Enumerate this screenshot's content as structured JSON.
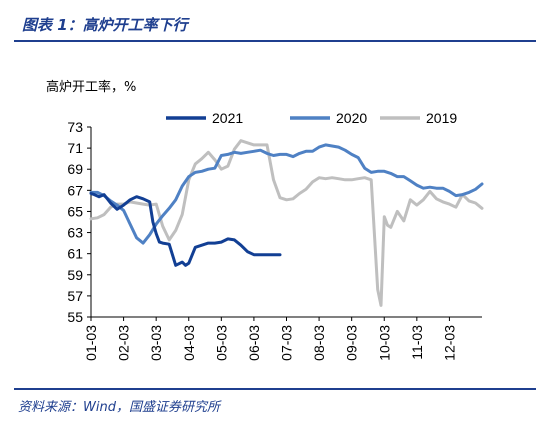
{
  "header": {
    "title": "图表 1：高炉开工率下行"
  },
  "footer": {
    "source": "资料来源：Wind，国盛证券研究所"
  },
  "colors": {
    "accent": "#1f3f8f"
  },
  "chart_data": {
    "type": "line",
    "ylabel": "高炉开工率，%",
    "ylim": [
      55,
      73
    ],
    "yticks": [
      55,
      57,
      59,
      61,
      63,
      65,
      67,
      69,
      71,
      73
    ],
    "xlim": [
      1.0,
      13.0
    ],
    "x_tick_labels": [
      "01-03",
      "02-03",
      "03-03",
      "04-03",
      "05-03",
      "06-03",
      "07-03",
      "08-03",
      "09-03",
      "10-03",
      "11-03",
      "12-03"
    ],
    "x_tick_values": [
      1,
      2,
      3,
      4,
      5,
      6,
      7,
      8,
      9,
      10,
      11,
      12
    ],
    "legend_position": "top-right",
    "series": [
      {
        "name": "2021",
        "color": "#123f94",
        "x": [
          1.0,
          1.1,
          1.25,
          1.4,
          1.6,
          1.8,
          2.0,
          2.2,
          2.4,
          2.6,
          2.8,
          2.9,
          3.0,
          3.1,
          3.2,
          3.4,
          3.6,
          3.8,
          3.9,
          4.0,
          4.2,
          4.4,
          4.6,
          4.8,
          5.0,
          5.2,
          5.4,
          5.6,
          5.8,
          6.0,
          6.2,
          6.4,
          6.6,
          6.8
        ],
        "values": [
          66.7,
          66.6,
          66.4,
          66.6,
          65.8,
          65.2,
          65.6,
          66.1,
          66.4,
          66.2,
          65.9,
          64.0,
          62.9,
          62.1,
          62.0,
          61.9,
          59.9,
          60.2,
          59.9,
          60.1,
          61.6,
          61.8,
          62.0,
          62.0,
          62.1,
          62.4,
          62.3,
          61.8,
          61.2,
          60.9,
          60.9,
          60.9,
          60.9,
          60.9
        ]
      },
      {
        "name": "2020",
        "color": "#4f81c4",
        "x": [
          1.0,
          1.2,
          1.4,
          1.6,
          1.8,
          2.0,
          2.2,
          2.4,
          2.6,
          2.8,
          3.0,
          3.2,
          3.4,
          3.6,
          3.8,
          4.0,
          4.2,
          4.4,
          4.6,
          4.8,
          5.0,
          5.2,
          5.4,
          5.6,
          5.8,
          6.0,
          6.2,
          6.4,
          6.6,
          6.8,
          7.0,
          7.2,
          7.4,
          7.6,
          7.8,
          8.0,
          8.2,
          8.4,
          8.6,
          8.8,
          9.0,
          9.2,
          9.4,
          9.6,
          9.8,
          10.0,
          10.2,
          10.4,
          10.6,
          10.8,
          11.0,
          11.2,
          11.4,
          11.6,
          11.8,
          12.0,
          12.2,
          12.4,
          12.6,
          12.8,
          13.0
        ],
        "values": [
          66.8,
          66.8,
          66.5,
          66.0,
          65.6,
          65.1,
          63.8,
          62.5,
          62.0,
          62.8,
          63.8,
          64.6,
          65.3,
          66.1,
          67.4,
          68.3,
          68.7,
          68.8,
          69.0,
          69.1,
          70.3,
          70.4,
          70.6,
          70.5,
          70.6,
          70.7,
          70.8,
          70.5,
          70.3,
          70.4,
          70.4,
          70.2,
          70.5,
          70.7,
          70.7,
          71.1,
          71.3,
          71.2,
          71.1,
          70.8,
          70.4,
          70.1,
          69.1,
          68.7,
          68.8,
          68.8,
          68.6,
          68.3,
          68.3,
          67.9,
          67.5,
          67.2,
          67.3,
          67.2,
          67.2,
          66.9,
          66.5,
          66.6,
          66.8,
          67.1,
          67.6
        ]
      },
      {
        "name": "2019",
        "color": "#bfbfbf",
        "x": [
          1.0,
          1.2,
          1.4,
          1.6,
          1.8,
          2.0,
          2.2,
          2.4,
          2.6,
          2.8,
          3.0,
          3.2,
          3.4,
          3.6,
          3.8,
          4.0,
          4.2,
          4.4,
          4.6,
          4.8,
          5.0,
          5.2,
          5.4,
          5.6,
          5.8,
          6.0,
          6.2,
          6.4,
          6.6,
          6.8,
          7.0,
          7.2,
          7.4,
          7.6,
          7.8,
          8.0,
          8.2,
          8.4,
          8.6,
          8.8,
          9.0,
          9.2,
          9.4,
          9.6,
          9.8,
          9.9,
          10.0,
          10.1,
          10.2,
          10.4,
          10.6,
          10.8,
          11.0,
          11.2,
          11.4,
          11.6,
          11.8,
          12.0,
          12.2,
          12.4,
          12.6,
          12.8,
          13.0
        ],
        "values": [
          64.3,
          64.4,
          64.7,
          65.4,
          65.7,
          65.7,
          65.9,
          65.8,
          65.7,
          65.6,
          65.7,
          63.6,
          62.3,
          63.2,
          64.7,
          68.0,
          69.5,
          70.0,
          70.6,
          69.9,
          69.0,
          69.3,
          70.9,
          71.7,
          71.5,
          71.3,
          71.3,
          71.3,
          68.0,
          66.3,
          66.1,
          66.2,
          66.7,
          67.1,
          67.8,
          68.2,
          68.1,
          68.2,
          68.1,
          68.0,
          68.0,
          68.1,
          68.2,
          68.0,
          57.6,
          56.1,
          64.5,
          63.7,
          63.5,
          65.0,
          64.1,
          66.1,
          65.6,
          66.1,
          66.9,
          66.2,
          65.9,
          65.7,
          65.4,
          66.6,
          66.0,
          65.8,
          65.3
        ]
      }
    ]
  }
}
